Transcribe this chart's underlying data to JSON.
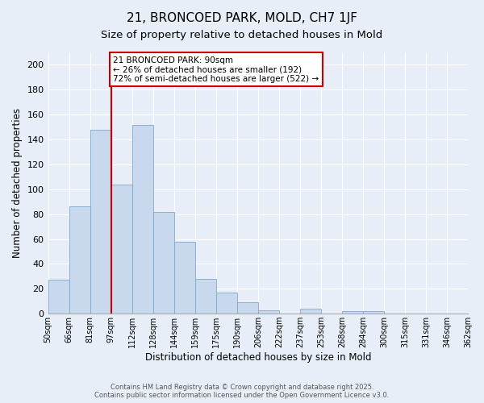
{
  "title": "21, BRONCOED PARK, MOLD, CH7 1JF",
  "subtitle": "Size of property relative to detached houses in Mold",
  "xlabel": "Distribution of detached houses by size in Mold",
  "ylabel": "Number of detached properties",
  "bar_values": [
    27,
    86,
    148,
    104,
    152,
    82,
    58,
    28,
    17,
    9,
    3,
    0,
    4,
    0,
    2,
    2,
    0,
    0,
    0,
    0
  ],
  "bin_labels": [
    "50sqm",
    "66sqm",
    "81sqm",
    "97sqm",
    "112sqm",
    "128sqm",
    "144sqm",
    "159sqm",
    "175sqm",
    "190sqm",
    "206sqm",
    "222sqm",
    "237sqm",
    "253sqm",
    "268sqm",
    "284sqm",
    "300sqm",
    "315sqm",
    "331sqm",
    "346sqm",
    "362sqm"
  ],
  "bar_color": "#c8d8ed",
  "bar_edge_color": "#7fa8cc",
  "vline_color": "#cc0000",
  "vline_x": 90,
  "annotation_title": "21 BRONCOED PARK: 90sqm",
  "annotation_line1": "← 26% of detached houses are smaller (192)",
  "annotation_line2": "72% of semi-detached houses are larger (522) →",
  "annotation_box_color": "#ffffff",
  "annotation_box_edge": "#cc0000",
  "ylim": [
    0,
    210
  ],
  "yticks": [
    0,
    20,
    40,
    60,
    80,
    100,
    120,
    140,
    160,
    180,
    200
  ],
  "background_color": "#e8eef8",
  "grid_color": "#ffffff",
  "footer_line1": "Contains HM Land Registry data © Crown copyright and database right 2025.",
  "footer_line2": "Contains public sector information licensed under the Open Government Licence v3.0.",
  "title_fontsize": 11,
  "subtitle_fontsize": 9.5
}
